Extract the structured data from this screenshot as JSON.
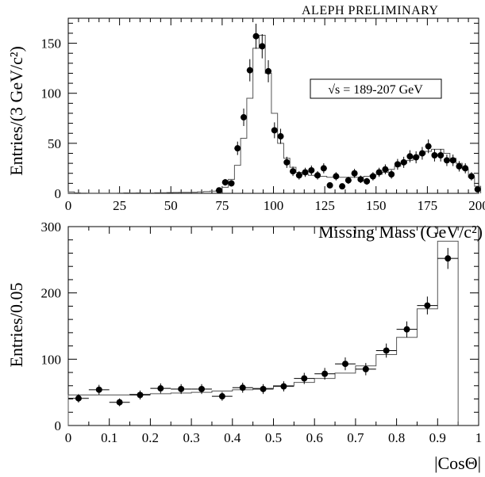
{
  "header": {
    "label": "ALEPH  PRELIMINARY"
  },
  "colors": {
    "ink": "#000000",
    "mc": "#555555",
    "background": "#ffffff"
  },
  "chart_data": [
    {
      "type": "scatter",
      "title": "",
      "xlabel": "Missing Mass (GeV/c²)",
      "ylabel": "Entries/(3 GeV/c²)",
      "xlim": [
        0,
        200
      ],
      "ylim": [
        0,
        175
      ],
      "xticks": [
        0,
        25,
        50,
        75,
        100,
        125,
        150,
        175,
        200
      ],
      "yticks": [
        0,
        50,
        100,
        150
      ],
      "annotation": "√s = 189-207 GeV",
      "bin_width": 3,
      "series": [
        {
          "name": "Data",
          "x": [
            73.5,
            76.5,
            79.5,
            82.5,
            85.5,
            88.5,
            91.5,
            94.5,
            97.5,
            100.5,
            103.5,
            106.5,
            109.5,
            112.5,
            115.5,
            118.5,
            121.5,
            124.5,
            127.5,
            130.5,
            133.5,
            136.5,
            139.5,
            142.5,
            145.5,
            148.5,
            151.5,
            154.5,
            157.5,
            160.5,
            163.5,
            166.5,
            169.5,
            172.5,
            175.5,
            178.5,
            181.5,
            184.5,
            187.5,
            190.5,
            193.5,
            196.5,
            199.5
          ],
          "y": [
            3,
            11,
            10,
            45,
            76,
            123,
            157,
            147,
            122,
            63,
            57,
            31,
            22,
            18,
            21,
            23,
            18,
            25,
            8,
            17,
            7,
            13,
            20,
            14,
            12,
            17,
            21,
            24,
            19,
            29,
            31,
            37,
            36,
            40,
            47,
            38,
            38,
            33,
            33,
            27,
            25,
            17,
            4
          ]
        },
        {
          "name": "MC",
          "edges": [
            0,
            3,
            6,
            9,
            12,
            15,
            18,
            21,
            24,
            27,
            30,
            33,
            36,
            39,
            42,
            45,
            48,
            51,
            54,
            57,
            60,
            63,
            66,
            69,
            72,
            75,
            78,
            81,
            84,
            87,
            90,
            93,
            96,
            99,
            102,
            105,
            108,
            111,
            114,
            117,
            120,
            123,
            126,
            129,
            132,
            135,
            138,
            141,
            144,
            147,
            150,
            153,
            156,
            159,
            162,
            165,
            168,
            171,
            174,
            177,
            180,
            183,
            186,
            189,
            192,
            195,
            198,
            201
          ],
          "values": [
            1.5,
            0.5,
            0.3,
            0.2,
            0.2,
            0.2,
            0.2,
            0.2,
            0.3,
            0.5,
            0.4,
            0.5,
            0.4,
            0.4,
            0.6,
            0.6,
            0.8,
            0.9,
            1,
            1,
            1.1,
            1.5,
            1.8,
            2.2,
            3,
            6,
            14,
            28,
            55,
            95,
            145,
            158,
            120,
            80,
            50,
            35,
            26,
            21,
            19,
            18,
            17,
            17,
            16,
            16,
            16,
            16,
            16,
            16,
            17,
            18,
            19,
            21,
            24,
            27,
            30,
            33,
            36,
            39,
            42,
            44,
            44,
            40,
            35,
            30,
            24,
            16,
            7
          ]
        }
      ]
    },
    {
      "type": "scatter",
      "title": "",
      "xlabel": "|CosΘ|",
      "ylabel": "Entries/0.05",
      "xlim": [
        0,
        1
      ],
      "ylim": [
        0,
        300
      ],
      "xticks": [
        0,
        0.1,
        0.2,
        0.3,
        0.4,
        0.5,
        0.6,
        0.7,
        0.8,
        0.9,
        1
      ],
      "xtick_labels": [
        "0",
        "0.1",
        "0.2",
        "0.3",
        "0.4",
        "0.5",
        "0.6",
        "0.7",
        "0.8",
        "0.9",
        "1"
      ],
      "yticks": [
        0,
        100,
        200,
        300
      ],
      "bin_width": 0.05,
      "series": [
        {
          "name": "Data",
          "x": [
            0.025,
            0.075,
            0.125,
            0.175,
            0.225,
            0.275,
            0.325,
            0.375,
            0.425,
            0.475,
            0.525,
            0.575,
            0.625,
            0.675,
            0.725,
            0.775,
            0.825,
            0.875,
            0.925
          ],
          "y": [
            41,
            54,
            35,
            46,
            56,
            55,
            55,
            44,
            57,
            55,
            59,
            71,
            78,
            93,
            85,
            113,
            145,
            181,
            252
          ]
        },
        {
          "name": "MC",
          "edges": [
            0,
            0.05,
            0.1,
            0.15,
            0.2,
            0.25,
            0.3,
            0.35,
            0.4,
            0.45,
            0.5,
            0.55,
            0.6,
            0.65,
            0.7,
            0.75,
            0.8,
            0.85,
            0.9,
            0.95
          ],
          "values": [
            46,
            46,
            46,
            47,
            48,
            49,
            50,
            52,
            54,
            56,
            60,
            65,
            71,
            79,
            90,
            107,
            133,
            176,
            278
          ]
        }
      ]
    }
  ]
}
